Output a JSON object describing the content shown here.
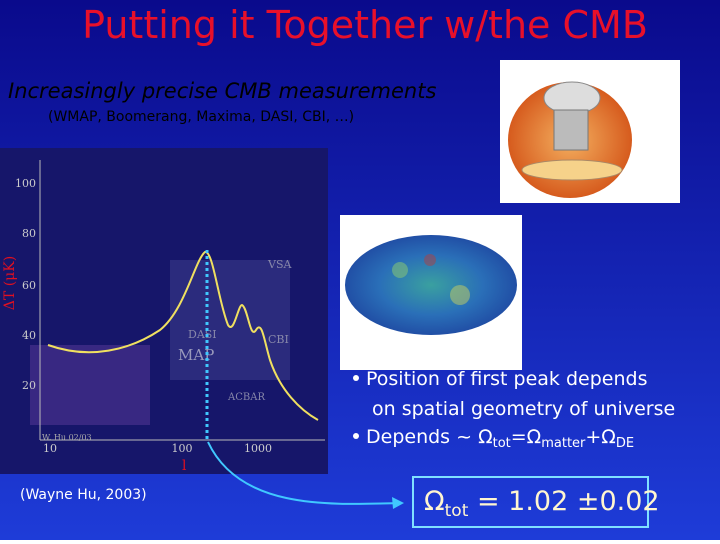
{
  "title": "Putting it Together w/the CMB",
  "subtitle": "Increasingly precise CMB measurements",
  "subtitle_note": "(WMAP, Boomerang, Maxima, DASI, CBI, …)",
  "plot": {
    "y_label": "ΔT (μK)",
    "x_label": "l",
    "y_ticks": [
      "100",
      "80",
      "60",
      "40",
      "20"
    ],
    "x_ticks": [
      "10",
      "100",
      "1000"
    ],
    "experiment_labels": [
      "VSA",
      "DASI",
      "CBI",
      "MAP",
      "ACBAR"
    ],
    "credit_tag": "W. Hu 02/03"
  },
  "credit": "(Wayne Hu, 2003)",
  "bullets": [
    {
      "lines": [
        "Position of first peak depends",
        "on spatial geometry of universe"
      ]
    },
    {
      "parts": [
        "Depends ~ ",
        "Ω",
        "tot",
        "=Ω",
        "matter",
        "+Ω",
        "DE"
      ]
    }
  ],
  "result": {
    "parts": [
      "Ω",
      "tot",
      " = 1.02 ±0.02"
    ]
  }
}
